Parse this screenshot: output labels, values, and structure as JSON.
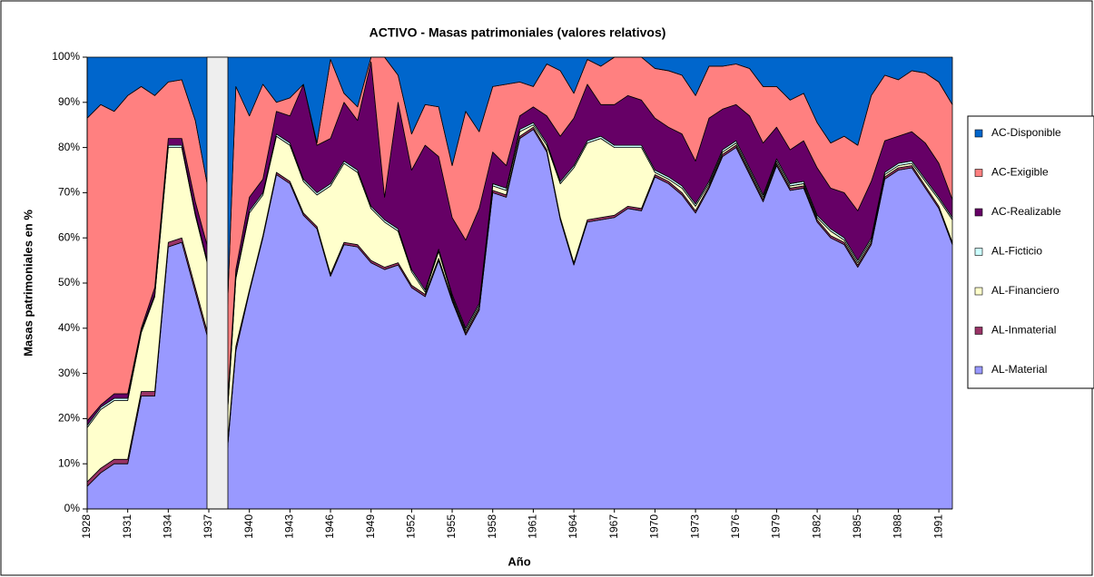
{
  "chart_data": {
    "type": "stacked_area",
    "title": "ACTIVO - Masas patrimoniales (valores relativos)",
    "xlabel": "Año",
    "ylabel": "Masas patrimoniales en %",
    "categories": [
      "1928",
      null,
      null,
      "1931",
      null,
      null,
      "1934",
      null,
      null,
      "1937",
      null,
      null,
      "1940",
      null,
      null,
      "1943",
      null,
      null,
      "1946",
      null,
      null,
      "1949",
      null,
      null,
      "1952",
      null,
      null,
      "1955",
      null,
      null,
      "1958",
      null,
      null,
      "1961",
      null,
      null,
      "1964",
      null,
      null,
      "1967",
      null,
      null,
      "1970",
      null,
      null,
      "1973",
      null,
      null,
      "1976",
      null,
      null,
      "1979",
      null,
      null,
      "1982",
      null,
      null,
      "1985",
      null,
      null,
      "1988",
      null,
      null,
      "1991",
      null
    ],
    "ylim": [
      0,
      100
    ],
    "yticks": [
      {
        "value": 0,
        "label": "0%"
      },
      {
        "value": 10,
        "label": "10%"
      },
      {
        "value": 20,
        "label": "20%"
      },
      {
        "value": 30,
        "label": "30%"
      },
      {
        "value": 40,
        "label": "40%"
      },
      {
        "value": 50,
        "label": "50%"
      },
      {
        "value": 60,
        "label": "60%"
      },
      {
        "value": 70,
        "label": "70%"
      },
      {
        "value": 80,
        "label": "80%"
      },
      {
        "value": 90,
        "label": "90%"
      },
      {
        "value": 100,
        "label": "100%"
      }
    ],
    "legend": "right",
    "series": [
      {
        "name": "AL-Material",
        "color": "#9999ff",
        "values": [
          5,
          8,
          10,
          10,
          25,
          25,
          58,
          59,
          48,
          37,
          0,
          35,
          48,
          60,
          74,
          72,
          65,
          62,
          51.5,
          58.5,
          58,
          54.5,
          53,
          54,
          49,
          47,
          55,
          46,
          38.5,
          44,
          70,
          69,
          82,
          84,
          79,
          64,
          54,
          63.5,
          64,
          64.5,
          66.5,
          66,
          73.5,
          72,
          69.5,
          65.5,
          71,
          78,
          80,
          74,
          68,
          76,
          70.5,
          71,
          63.5,
          60,
          58.5,
          53.5,
          58.5,
          73,
          75,
          75.5,
          71,
          66.5,
          58.5
        ]
      },
      {
        "name": "AL-Inmaterial",
        "color": "#993366",
        "values": [
          1,
          1,
          1,
          1,
          1,
          1,
          1,
          1,
          1,
          1,
          1,
          1,
          0.5,
          0.5,
          0.5,
          0.5,
          0.5,
          0.5,
          0.5,
          0.5,
          0.5,
          0.5,
          0.5,
          0.5,
          0.5,
          0.5,
          0.5,
          0.5,
          0.5,
          0.5,
          0.5,
          0.5,
          0.5,
          0.5,
          0.5,
          0.5,
          0.5,
          0.5,
          0.5,
          0.5,
          0.5,
          0.5,
          0.5,
          0.5,
          0.5,
          0.5,
          0.5,
          0.5,
          0.5,
          0.5,
          0.5,
          0.5,
          0.5,
          0.5,
          0.5,
          0.5,
          0.5,
          0.5,
          0.5,
          0.5,
          0.5,
          0.5,
          0.5,
          0.5,
          0.5
        ]
      },
      {
        "name": "AL-Financiero",
        "color": "#ffffcc",
        "values": [
          12,
          13,
          13,
          13,
          13,
          21,
          21,
          20,
          16,
          15,
          2,
          15,
          17,
          9,
          8,
          8,
          7,
          7,
          19.5,
          17.5,
          16,
          11.5,
          10,
          7,
          3,
          0.5,
          1.5,
          0.5,
          0.5,
          0.5,
          1,
          1,
          1,
          0.5,
          1,
          7.5,
          21,
          17,
          17.5,
          15,
          13,
          13.5,
          0.5,
          0.5,
          1,
          1,
          0.5,
          0.5,
          0.5,
          0.5,
          0.5,
          0.5,
          0.5,
          0.5,
          0.5,
          1,
          0.5,
          0.5,
          0.5,
          0.5,
          0.5,
          0.5,
          1,
          1.5,
          5
        ]
      },
      {
        "name": "AL-Ficticio",
        "color": "#ccffff",
        "values": [
          0.5,
          0.5,
          0.5,
          0.5,
          0.5,
          0.5,
          0.5,
          0.5,
          0.5,
          0.5,
          0.5,
          0.5,
          0.5,
          0.5,
          0.5,
          0.5,
          0.5,
          0.5,
          0.5,
          0.5,
          0.5,
          0.5,
          0.5,
          0.5,
          0.5,
          0.5,
          0.5,
          0.5,
          0.5,
          0.5,
          0.5,
          0.5,
          0.5,
          0.5,
          0.5,
          0.5,
          0.5,
          0.5,
          0.5,
          0.5,
          0.5,
          0.5,
          0.5,
          0.5,
          0.5,
          0.5,
          0.5,
          0.5,
          0.5,
          0.5,
          0.5,
          0.5,
          0.5,
          0.5,
          0.5,
          0.5,
          0.5,
          0.5,
          0.5,
          0.5,
          0.5,
          0.5,
          0.5,
          0.5,
          0.5
        ]
      },
      {
        "name": "AC-Realizable",
        "color": "#660066",
        "values": [
          1,
          0.5,
          1,
          1,
          0.5,
          1.5,
          1.5,
          1.5,
          2.5,
          3.5,
          1.5,
          1.5,
          3,
          3,
          5,
          6,
          21,
          10.5,
          10,
          13,
          11,
          32,
          5,
          28,
          22,
          32,
          20.5,
          17,
          19.5,
          21,
          7,
          5,
          3,
          3.5,
          6,
          10,
          10.5,
          12.5,
          7,
          9,
          11,
          10,
          11.5,
          11,
          11.5,
          9.5,
          14,
          9,
          8,
          11.5,
          11.5,
          7,
          7.5,
          9,
          10.5,
          9,
          10,
          11,
          12.5,
          7,
          6,
          6.5,
          8,
          7.5,
          4
        ]
      },
      {
        "name": "AC-Exigible",
        "color": "#ff8080",
        "values": [
          67,
          66.5,
          62.5,
          66,
          53.5,
          42.5,
          12.5,
          13,
          18,
          13,
          10,
          40.5,
          18,
          21,
          2,
          4,
          0,
          0.5,
          17.5,
          2,
          3,
          1,
          31,
          6,
          8,
          9,
          11,
          11.5,
          28.5,
          17,
          14.5,
          18,
          7.5,
          4.5,
          11.5,
          14.5,
          5.5,
          5.5,
          8.5,
          10.5,
          8.5,
          9.5,
          11,
          12.5,
          13,
          14.5,
          11.5,
          9.5,
          9,
          10.5,
          12.5,
          9,
          11,
          10.5,
          10,
          10,
          12.5,
          14.5,
          19,
          14.5,
          12.5,
          13.5,
          15.5,
          18,
          21
        ]
      },
      {
        "name": "AC-Disponible",
        "color": "#0066cc",
        "values": [
          13.5,
          10.5,
          12,
          8.5,
          6.5,
          8.5,
          5.5,
          5,
          14,
          30,
          85,
          6.5,
          13,
          6,
          10,
          9,
          6,
          19,
          0.5,
          8,
          11,
          0,
          0,
          4,
          17,
          10.5,
          11,
          24,
          12,
          16.5,
          6.5,
          6,
          5.5,
          6.5,
          1.5,
          3,
          8,
          0.5,
          2,
          0,
          0,
          0,
          2.5,
          3,
          4,
          8.5,
          2,
          2,
          1.5,
          2.5,
          6.5,
          6.5,
          9.5,
          8,
          14.5,
          19,
          17.5,
          19.5,
          8.5,
          4,
          5,
          3,
          3.5,
          5.5,
          10.5
        ]
      }
    ]
  }
}
